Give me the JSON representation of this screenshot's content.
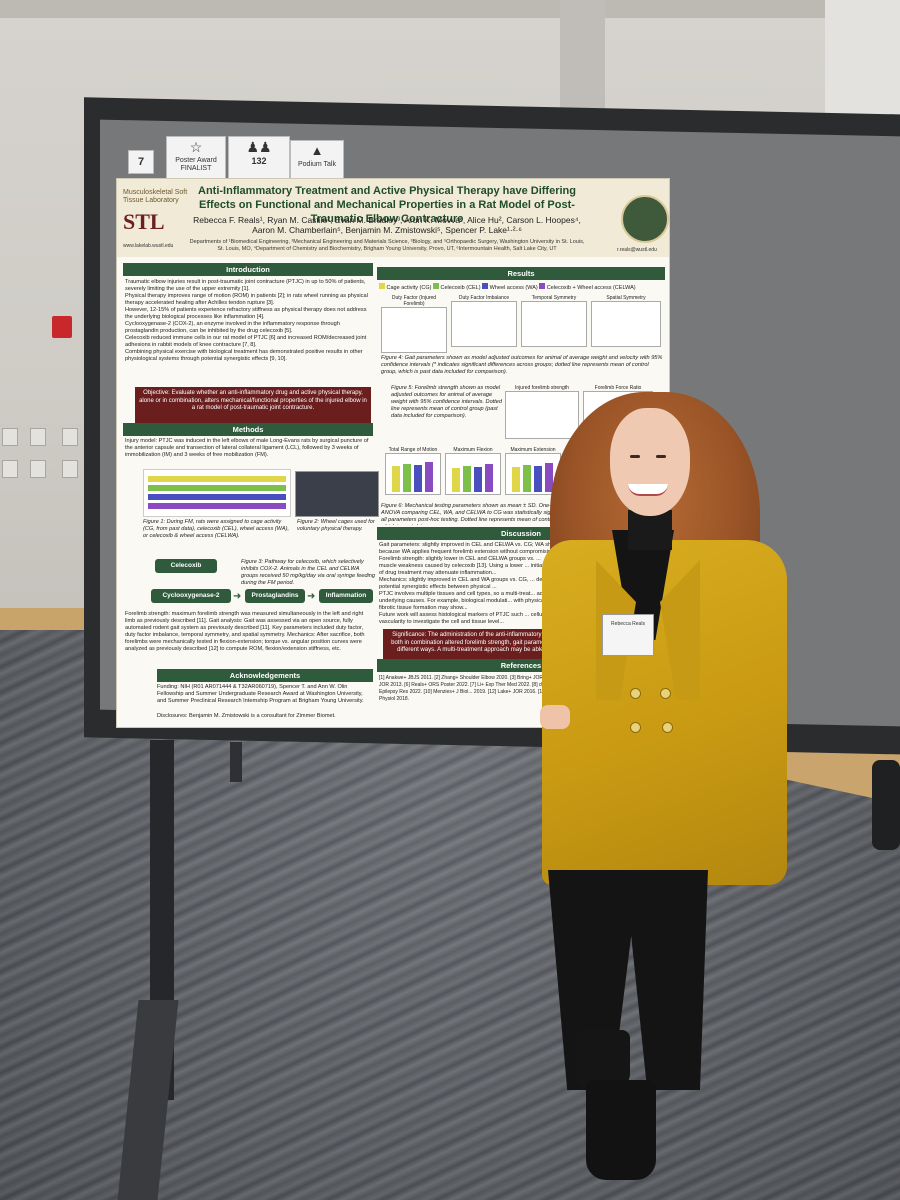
{
  "badges": {
    "board_number": "7",
    "poster_award": "Poster Award FINALIST",
    "award_count": "132",
    "podium_talk": "Podium Talk"
  },
  "poster": {
    "title": "Anti-Inflammatory Treatment and Active Physical Therapy have Differing Effects on Functional and Mechanical Properties in a Rat Model of Post-Traumatic Elbow Contracture",
    "authors": "Rebecca F. Reals¹, Ryan M. Castile², Evan M. Bradley³, Arun K. Movva³, Alice Hu², Carson L. Hoopes⁴, Aaron M. Chamberlain⁵, Benjamin M. Zmistowski⁵, Spencer P. Lake¹·²·⁶",
    "affiliations": "Departments of ¹Biomedical Engineering, ²Mechanical Engineering and Materials Science, ³Biology, and ⁵Orthopaedic Surgery, Washington University in St. Louis, St. Louis, MO, ⁴Department of Chemistry and Biochemistry, Brigham Young University, Provo, UT, ⁶Intermountain Health, Salt Lake City, UT",
    "lab_name": "Musculoskeletal Soft Tissue Laboratory",
    "lab_logo": "STL",
    "lab_url": "www.lakelab.wustl.edu",
    "email": "r.reals@wustl.edu",
    "sections": {
      "introduction": "Introduction",
      "methods": "Methods",
      "results": "Results",
      "discussion": "Discussion",
      "references": "References",
      "acknowledgements": "Acknowledgements"
    },
    "intro_bullets": [
      "Traumatic elbow injuries result in post-traumatic joint contracture (PTJC) in up to 50% of patients, severely limiting the use of the upper extremity [1].",
      "Physical therapy improves range of motion (ROM) in patients [2]; in rats wheel running as physical therapy accelerated healing after Achilles tendon rupture [3].",
      "However, 12-15% of patients experience refractory stiffness as physical therapy does not address the underlying biological processes like inflammation [4].",
      "Cyclooxygenase-2 (COX-2), an enzyme involved in the inflammatory response through prostaglandin production, can be inhibited by the drug celecoxib [5].",
      "Celecoxib reduced immune cells in our rat model of PTJC [6] and increased ROM/decreased joint adhesions in rabbit models of knee contracture [7, 8].",
      "Combining physical exercise with biological treatment has demonstrated positive results in other physiological systems through potential synergistic effects [9, 10]."
    ],
    "objective": "Objective: Evaluate whether an anti-inflammatory drug and active physical therapy, alone or in combination, alters mechanical/functional properties of the injured elbow in a rat model of post-traumatic joint contracture.",
    "methods_text": "Injury model: PTJC was induced in the left elbows of male Long-Evans rats by surgical puncture of the anterior capsule and transection of lateral collateral ligament (LCL), followed by 3 weeks of immobilization (IM) and 3 weeks of free mobilization (FM).",
    "figure1": "Figure 1: During FM, rats were assigned to cage activity (CG, from past data), celecoxib (CEL), wheel access (WA), or celecoxib & wheel access (CELWA).",
    "figure2": "Figure 2: Wheel cages used for voluntary physical therapy.",
    "flow": {
      "drug": "Celecoxib",
      "enzyme": "Cyclooxygenase-2",
      "product": "Prostaglandins",
      "outcome": "Inflammation"
    },
    "figure3": "Figure 3: Pathway for celecoxib, which selectively inhibits COX-2. Animals in the CEL and CELWA groups received 50 mg/kg/day via oral syringe feeding during the FM period.",
    "methods_text_2": "Forelimb strength: maximum forelimb strength was measured simultaneously in the left and right limb as previously described [11]. Gait analysis: Gait was assessed via an open source, fully automated rodent gait system as previously described [11]. Key parameters included duty factor, duty factor imbalance, temporal symmetry, and spatial symmetry. Mechanics: After sacrifice, both forelimbs were mechanically tested in flexion-extension; torque vs. angular position curves were analyzed as previously described [12] to compute ROM, flexion/extension stiffness, etc.",
    "funding": "Funding: NIH (R01 AR071444 & T32AR060719), Spencer T. and Ann W. Olin Fellowship and Summer Undergraduate Research Award at Washington University, and Summer Preclinical Research Internship Program at Brigham Young University.",
    "disclosures": "Disclosures: Benjamin M. Zmistowski is a consultant for Zimmer Biomet.",
    "legend": [
      "Cage activity (CG)",
      "Celecoxib (CEL)",
      "Wheel access (WA)",
      "Celecoxib + Wheel access (CELWA)"
    ],
    "legend_colors": [
      "#e0d64a",
      "#7cbf4a",
      "#4a4fc0",
      "#8a4ac0"
    ],
    "gait_charts": [
      "Duty Factor (Injured Forelimb)",
      "Duty Factor Imbalance",
      "Temporal Symmetry",
      "Spatial Symmetry"
    ],
    "figure4": "Figure 4: Gait parameters shown as model adjusted outcomes for animal of average weight and velocity with 95% confidence intervals (* indicates significant differences across groups; dotted line represents mean of control group, which is past data included for comparison).",
    "figure5": "Figure 5: Forelimb strength shown as model adjusted outcomes for animal of average weight with 95% confidence intervals. Dotted line represents mean of control group (past data included for comparison).",
    "strength_charts": [
      "Injured forelimb strength",
      "Forelimb Force Ratio"
    ],
    "mech_charts": [
      "Total Range of Motion",
      "Maximum Flexion",
      "Maximum Extension"
    ],
    "figure6": "Figure 6: Mechanical testing parameters shown as mean ± SD. One-way ANOVA comparing CEL, WA, and CELWA to CG was statistically significant for all parameters post-hoc testing. Dotted line represents mean of control group, which is past data.",
    "discussion_bullets": [
      "Gait parameters: slightly improved in CEL and CELWA vs. CG; WA showed ... because WA applies frequent forelimb extension without compromising...",
      "Forelimb strength: slightly lower in CEL and CELWA groups vs. ...",
      "muscle weakness caused by celecoxib [13]. Using a lower ... initiation/duration of drug treatment may attenuate inflammation...",
      "Mechanics: slightly improved in CEL and WA groups vs. CG, ... demonstrating potential synergistic effects between physical ...",
      "PTJC involves multiple tissues and cell types, so a multi-treat... address all underlying causes. For example, biological modulati... with physical disruption of fibrotic tissue formation may show...",
      "Future work will assess histological markers of PTJC such ... cellularity, and vascularity to investigate the cell and tissue level..."
    ],
    "significance": "Significance: The administration of the anti-inflammatory drug ... both in combination altered forelimb strength, gait parameters, ... different ways. A multi-treatment approach may be able to ...",
    "references_text": "[1] Anakwe+ JBJS 2011. [2] Zhang+ Shoulder Elbow 2020. [3] Bring+ JOR 2007. [5] Kojsic JOR 2013. [6] Reals+ ORS Poster 2022. [7] Li+ Exp Ther Med 2022. [8] de Lima Rosa+ Epilepsy Res 2022. [10] Menzies+ J Biol... 2019. [12] Lake+ JOR 2016. [13] Lilja+ Acta Physiol 2018."
  },
  "nametag": {
    "text": "Rebecca Reals"
  }
}
